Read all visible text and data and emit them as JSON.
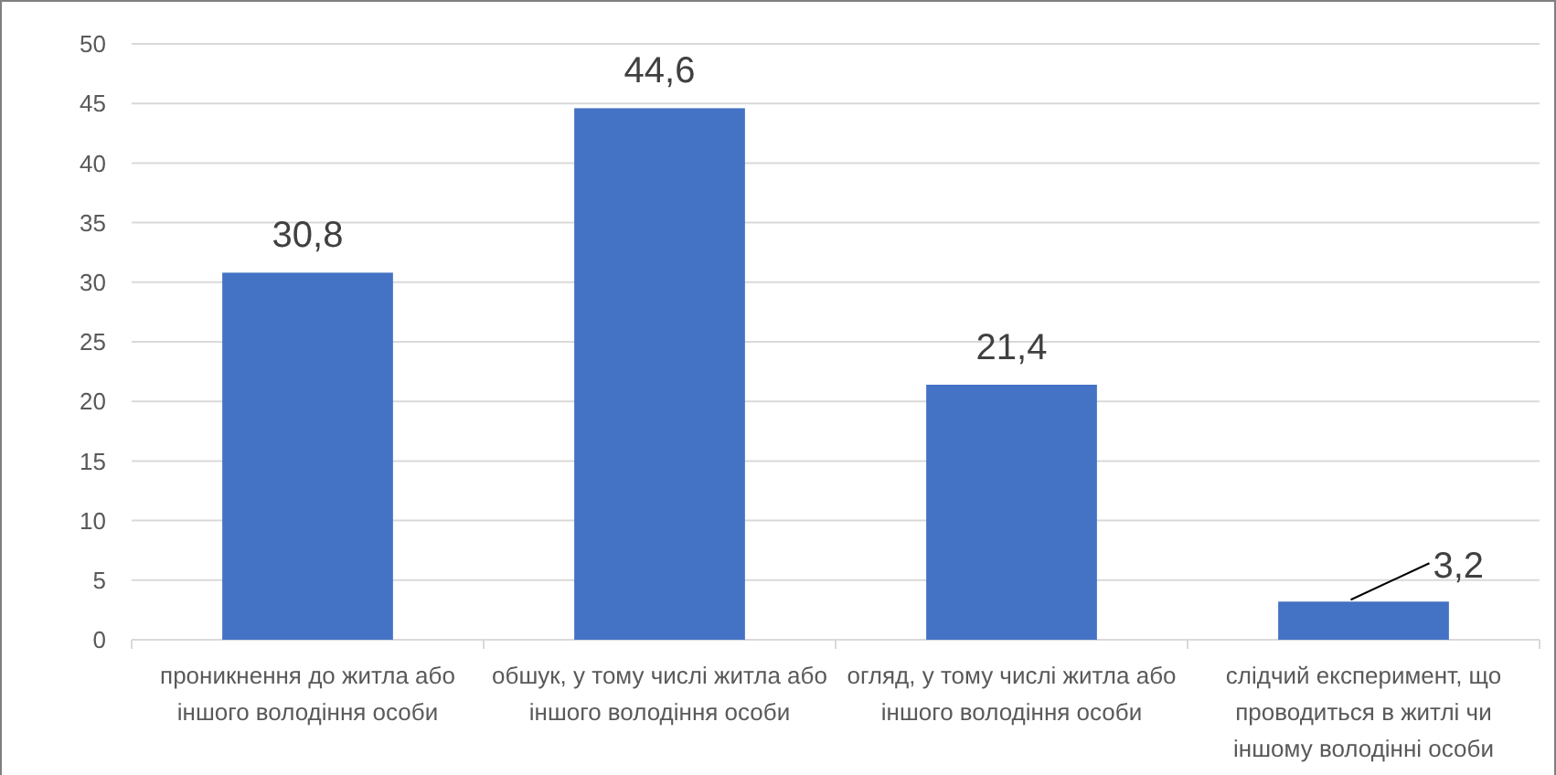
{
  "chart_data": {
    "type": "bar",
    "categories": [
      "проникнення до житла або іншого володіння особи",
      "обшук, у тому числі житла або іншого володіння особи",
      "огляд, у тому числі житла або іншого володіння особи",
      "слідчий експеримент, що проводиться в житлі чи іншому володінні особи"
    ],
    "values": [
      30.8,
      44.6,
      21.4,
      3.2
    ],
    "value_labels": [
      "30,8",
      "44,6",
      "21,4",
      "3,2"
    ],
    "color": "#4472c4",
    "ylim": [
      0,
      50
    ],
    "yticks": [
      0,
      5,
      10,
      15,
      20,
      25,
      30,
      35,
      40,
      45,
      50
    ],
    "grid": "y"
  }
}
